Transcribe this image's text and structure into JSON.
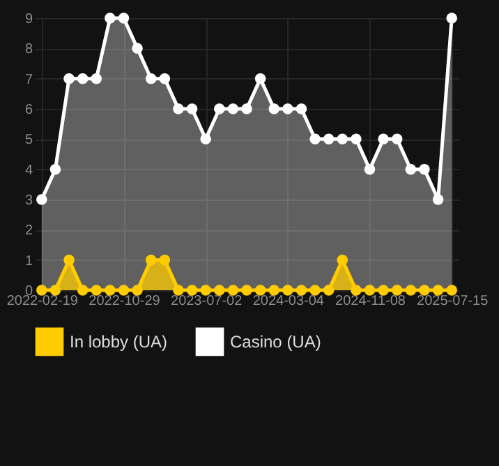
{
  "chart_data": {
    "type": "area",
    "categories": [
      "2022-02-19",
      null,
      null,
      null,
      null,
      null,
      "2022-10-29",
      null,
      null,
      null,
      null,
      null,
      "2023-07-02",
      null,
      null,
      null,
      null,
      null,
      "2024-03-04",
      null,
      null,
      null,
      null,
      null,
      "2024-11-08",
      null,
      null,
      null,
      null,
      null,
      "2025-07-15"
    ],
    "series": [
      {
        "name": "In lobby (UA)",
        "color": "#ffcc00",
        "values": [
          0,
          0,
          1,
          0,
          0,
          0,
          0,
          0,
          1,
          1,
          0,
          0,
          0,
          0,
          0,
          0,
          0,
          0,
          0,
          0,
          0,
          0,
          1,
          0,
          0,
          0,
          0,
          0,
          0,
          0,
          0
        ]
      },
      {
        "name": "Casino (UA)",
        "color": "#ffffff",
        "values": [
          3,
          4,
          7,
          7,
          7,
          9,
          9,
          8,
          7,
          7,
          6,
          6,
          5,
          6,
          6,
          6,
          7,
          6,
          6,
          6,
          5,
          5,
          5,
          5,
          4,
          5,
          5,
          4,
          4,
          3,
          9
        ]
      }
    ],
    "ylim": [
      0,
      9
    ],
    "yticks": [
      0,
      1,
      2,
      3,
      4,
      5,
      6,
      7,
      8,
      9
    ],
    "grid": true,
    "legend": "bottom",
    "marker": "circle",
    "line_style": "solid"
  }
}
